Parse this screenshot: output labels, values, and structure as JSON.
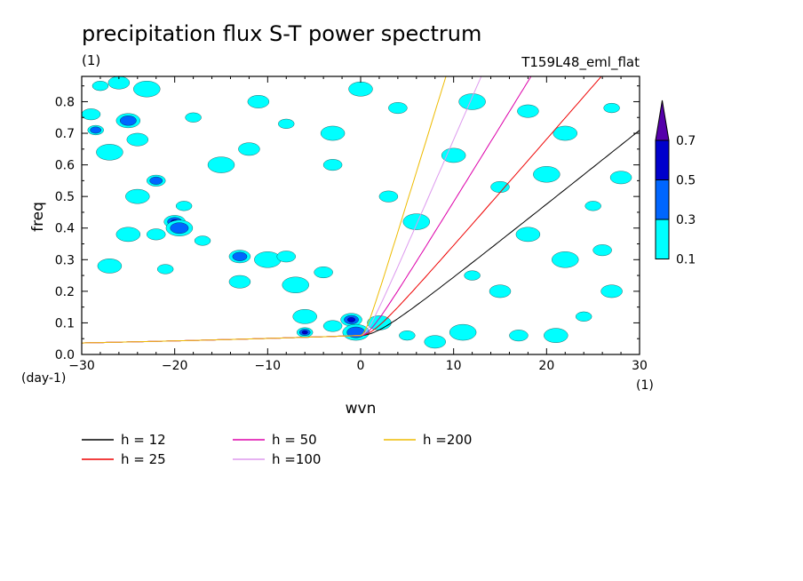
{
  "chart_data": {
    "type": "contour",
    "title": "precipitation flux S-T power spectrum",
    "subtitle_left": "(1)",
    "subtitle_right": "T159L48_eml_flat",
    "xlabel": "wvn",
    "ylabel": "freq",
    "x_unit": "(1)",
    "y_unit": "(day-1)",
    "xlim": [
      -30,
      30
    ],
    "ylim": [
      0,
      0.88
    ],
    "x_ticks": [
      -30,
      -20,
      -10,
      0,
      10,
      20,
      30
    ],
    "y_ticks": [
      0.0,
      0.1,
      0.2,
      0.3,
      0.4,
      0.5,
      0.6,
      0.7,
      0.8
    ],
    "y_tick_labels": [
      "0.0",
      "0.1",
      "0.2",
      "0.3",
      "0.4",
      "0.5",
      "0.6",
      "0.7",
      "0.8"
    ],
    "x_tick_labels": [
      "−30",
      "−20",
      "−10",
      "0",
      "10",
      "20",
      "30"
    ],
    "colorbar": {
      "levels": [
        0.1,
        0.3,
        0.5,
        0.7
      ],
      "labels": [
        "0.1",
        "0.3",
        "0.5",
        "0.7"
      ],
      "colors": [
        "#00ffff",
        "#0066ff",
        "#0000cc",
        "#5500aa"
      ]
    },
    "contour_blobs": [
      {
        "x": -28,
        "y": 0.85,
        "level": 1
      },
      {
        "x": -26,
        "y": 0.86,
        "level": 1
      },
      {
        "x": -23,
        "y": 0.84,
        "level": 1
      },
      {
        "x": -29,
        "y": 0.76,
        "level": 1
      },
      {
        "x": -25,
        "y": 0.74,
        "level": 2
      },
      {
        "x": -28.5,
        "y": 0.71,
        "level": 2
      },
      {
        "x": -24,
        "y": 0.68,
        "level": 1
      },
      {
        "x": -27,
        "y": 0.64,
        "level": 1
      },
      {
        "x": -22,
        "y": 0.55,
        "level": 2
      },
      {
        "x": -24,
        "y": 0.5,
        "level": 1
      },
      {
        "x": -19,
        "y": 0.47,
        "level": 1
      },
      {
        "x": -20,
        "y": 0.42,
        "level": 3
      },
      {
        "x": -19.5,
        "y": 0.4,
        "level": 2
      },
      {
        "x": -22,
        "y": 0.38,
        "level": 1
      },
      {
        "x": -25,
        "y": 0.38,
        "level": 1
      },
      {
        "x": -17,
        "y": 0.36,
        "level": 1
      },
      {
        "x": -13,
        "y": 0.31,
        "level": 2
      },
      {
        "x": -10,
        "y": 0.3,
        "level": 1
      },
      {
        "x": -8,
        "y": 0.31,
        "level": 1
      },
      {
        "x": -27,
        "y": 0.28,
        "level": 1
      },
      {
        "x": -21,
        "y": 0.27,
        "level": 1
      },
      {
        "x": -13,
        "y": 0.23,
        "level": 1
      },
      {
        "x": -7,
        "y": 0.22,
        "level": 1
      },
      {
        "x": -4,
        "y": 0.26,
        "level": 1
      },
      {
        "x": -6,
        "y": 0.12,
        "level": 1
      },
      {
        "x": -6,
        "y": 0.07,
        "level": 3
      },
      {
        "x": -1,
        "y": 0.11,
        "level": 3
      },
      {
        "x": -0.5,
        "y": 0.07,
        "level": 2
      },
      {
        "x": -3,
        "y": 0.09,
        "level": 1
      },
      {
        "x": 2,
        "y": 0.1,
        "level": 1
      },
      {
        "x": 5,
        "y": 0.06,
        "level": 1
      },
      {
        "x": 8,
        "y": 0.04,
        "level": 1
      },
      {
        "x": 6,
        "y": 0.42,
        "level": 1
      },
      {
        "x": 3,
        "y": 0.5,
        "level": 1
      },
      {
        "x": 10,
        "y": 0.63,
        "level": 1
      },
      {
        "x": 12,
        "y": 0.25,
        "level": 1
      },
      {
        "x": 15,
        "y": 0.2,
        "level": 1
      },
      {
        "x": 11,
        "y": 0.07,
        "level": 1
      },
      {
        "x": 17,
        "y": 0.06,
        "level": 1
      },
      {
        "x": 21,
        "y": 0.06,
        "level": 1
      },
      {
        "x": 24,
        "y": 0.12,
        "level": 1
      },
      {
        "x": 27,
        "y": 0.2,
        "level": 1
      },
      {
        "x": 22,
        "y": 0.3,
        "level": 1
      },
      {
        "x": 26,
        "y": 0.33,
        "level": 1
      },
      {
        "x": 18,
        "y": 0.38,
        "level": 1
      },
      {
        "x": 25,
        "y": 0.47,
        "level": 1
      },
      {
        "x": 28,
        "y": 0.56,
        "level": 1
      },
      {
        "x": 20,
        "y": 0.57,
        "level": 1
      },
      {
        "x": 15,
        "y": 0.53,
        "level": 1
      },
      {
        "x": 22,
        "y": 0.7,
        "level": 1
      },
      {
        "x": 27,
        "y": 0.78,
        "level": 1
      },
      {
        "x": 18,
        "y": 0.77,
        "level": 1
      },
      {
        "x": 12,
        "y": 0.8,
        "level": 1
      },
      {
        "x": 4,
        "y": 0.78,
        "level": 1
      },
      {
        "x": -3,
        "y": 0.7,
        "level": 1
      },
      {
        "x": -8,
        "y": 0.73,
        "level": 1
      },
      {
        "x": -12,
        "y": 0.65,
        "level": 1
      },
      {
        "x": -15,
        "y": 0.6,
        "level": 1
      },
      {
        "x": -3,
        "y": 0.6,
        "level": 1
      },
      {
        "x": 0,
        "y": 0.84,
        "level": 1
      },
      {
        "x": -18,
        "y": 0.75,
        "level": 1
      },
      {
        "x": -11,
        "y": 0.8,
        "level": 1
      }
    ],
    "series": [
      {
        "name": "h = 12",
        "color": "#000000",
        "h": 12
      },
      {
        "name": "h = 25",
        "color": "#ee0000",
        "h": 25
      },
      {
        "name": "h = 50",
        "color": "#dd00aa",
        "h": 50
      },
      {
        "name": "h =100",
        "color": "#dd99ee",
        "h": 100
      },
      {
        "name": "h =200",
        "color": "#eebb00",
        "h": 200
      }
    ]
  }
}
